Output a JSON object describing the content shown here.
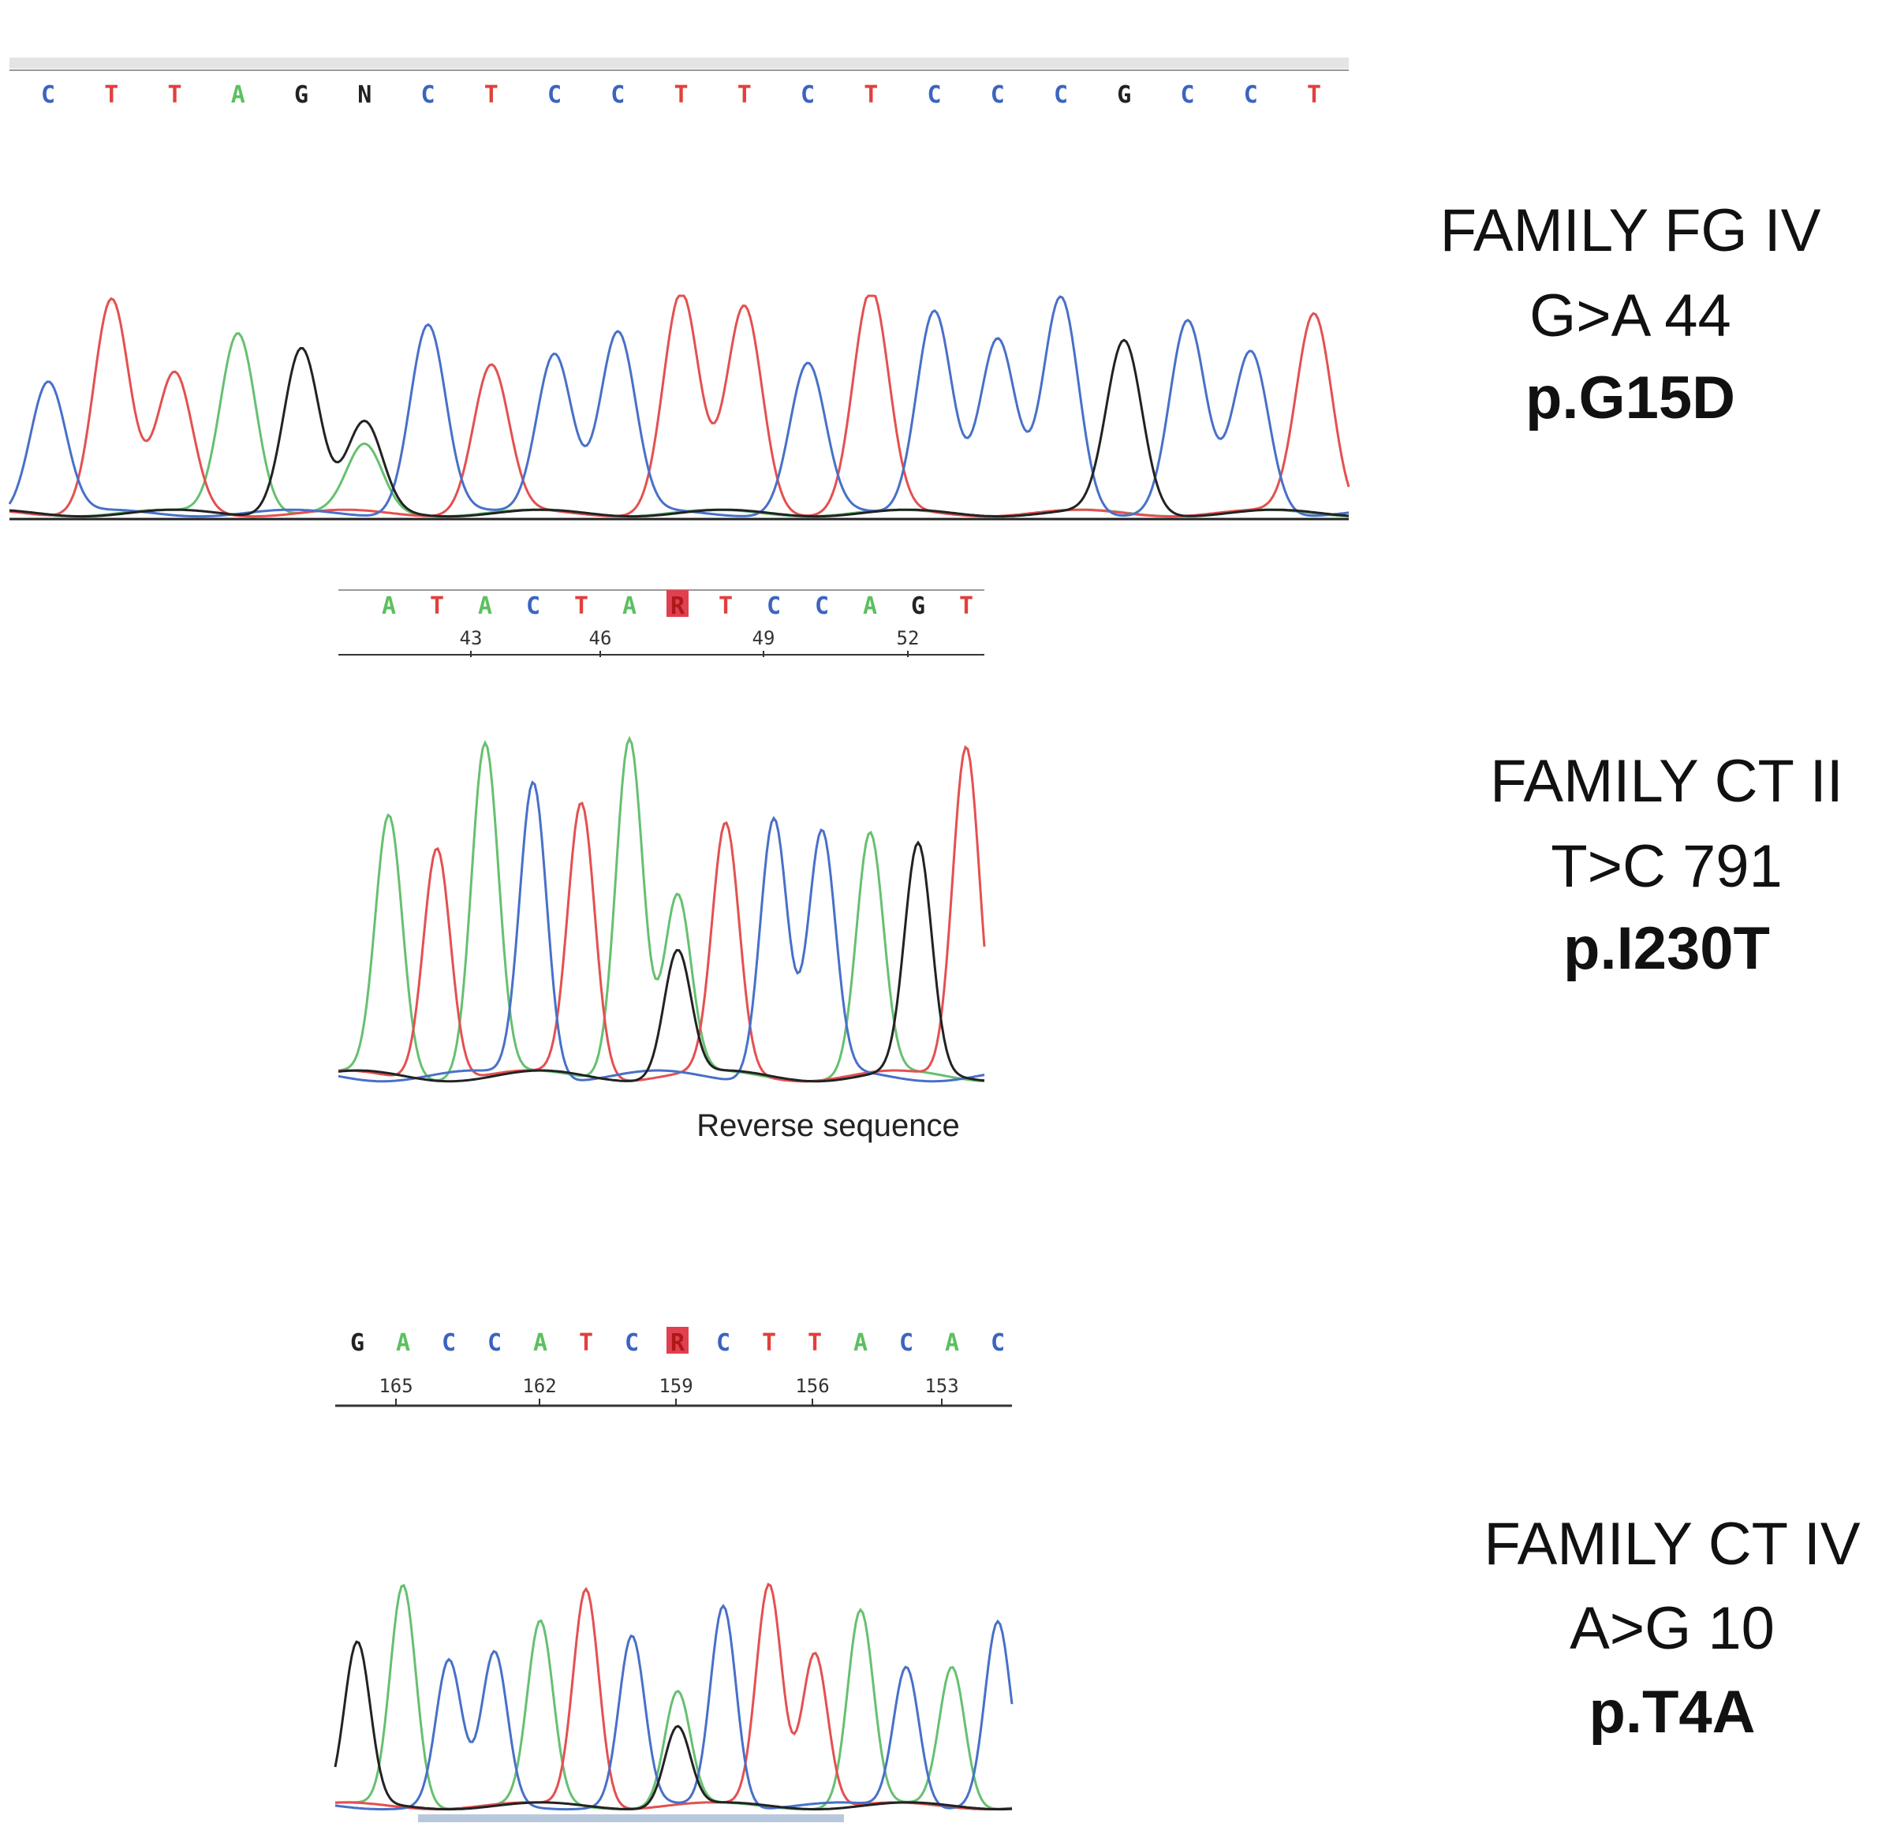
{
  "panels": [
    {
      "bases": [
        "C",
        "T",
        "T",
        "A",
        "G",
        "N",
        "C",
        "T",
        "C",
        "C",
        "T",
        "T",
        "C",
        "T",
        "C",
        "C",
        "C",
        "G",
        "C",
        "C",
        "T"
      ],
      "label": {
        "family": "FAMILY FG IV",
        "change": "G>A 44",
        "protein": "p.G15D"
      }
    },
    {
      "bases": [
        "A",
        "T",
        "A",
        "C",
        "T",
        "A",
        "R",
        "T",
        "C",
        "C",
        "A",
        "G",
        "T"
      ],
      "positions": [
        "43",
        "46",
        "49",
        "52"
      ],
      "note": "Reverse sequence",
      "label": {
        "family": "FAMILY CT II",
        "change": "T>C 791",
        "protein": "p.I230T"
      }
    },
    {
      "bases": [
        "G",
        "A",
        "C",
        "C",
        "A",
        "T",
        "C",
        "R",
        "C",
        "T",
        "T",
        "A",
        "C",
        "A",
        "C"
      ],
      "positions": [
        "165",
        "162",
        "159",
        "156",
        "153"
      ],
      "label": {
        "family": "FAMILY CT IV",
        "change": "A>G 10",
        "protein": "p.T4A"
      }
    }
  ]
}
